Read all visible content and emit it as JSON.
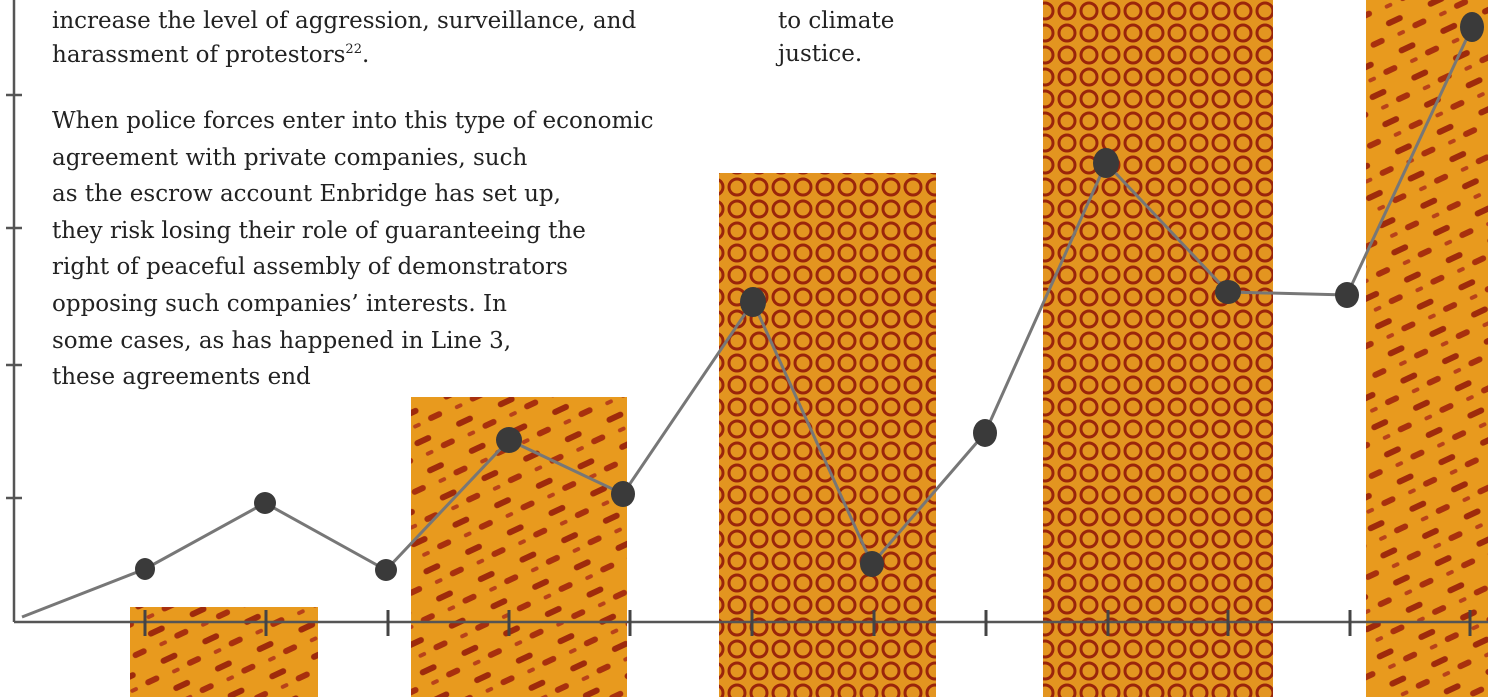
{
  "column_left": {
    "paragraph_1": {
      "lines": [
        "increase the level of aggression, surveillance, and",
        "harassment of protestors"
      ],
      "footnote": "22",
      "end": "."
    },
    "paragraph_2": {
      "lines": [
        "When police forces enter into this type of economic",
        "agreement with private companies, such",
        "as the escrow account Enbridge has set up,",
        "they risk losing their role of guaranteeing the",
        "right of peaceful assembly of demonstrators",
        "opposing such companies’ interests. In",
        "some cases, as has happened in Line 3,",
        "these agreements end"
      ]
    }
  },
  "column_right": {
    "lines": [
      "to climate",
      "justice."
    ]
  }
}
